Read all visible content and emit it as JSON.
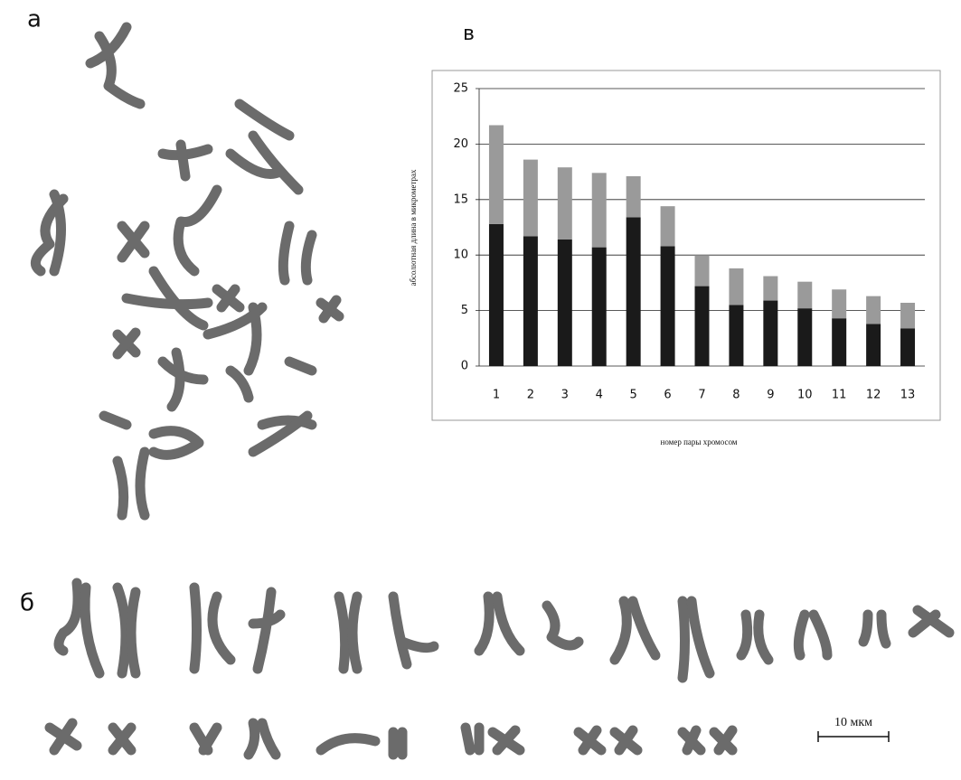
{
  "figure": {
    "panel_a": "а",
    "panel_b": "б",
    "panel_c": "в",
    "scale_bar": "10 мкм"
  },
  "chart_data": {
    "type": "stacked-bar",
    "y_label": "абсолютная длина в микрометрах",
    "x_label": "номер пары хромосом",
    "categories": [
      "1",
      "2",
      "3",
      "4",
      "5",
      "6",
      "7",
      "8",
      "9",
      "10",
      "11",
      "12",
      "13"
    ],
    "series": [
      {
        "color": "#1a1a1a",
        "values": [
          12.8,
          11.7,
          11.4,
          10.7,
          13.4,
          10.8,
          7.2,
          5.5,
          5.9,
          5.2,
          4.3,
          3.8,
          3.4
        ]
      },
      {
        "color": "#9a9a9a",
        "values": [
          8.9,
          6.9,
          6.5,
          6.7,
          3.7,
          3.6,
          2.8,
          3.3,
          2.2,
          2.4,
          2.6,
          2.5,
          2.3
        ]
      }
    ],
    "ylim": [
      0,
      25
    ],
    "yticks": [
      0,
      5,
      10,
      15,
      20,
      25
    ],
    "grid": true
  }
}
